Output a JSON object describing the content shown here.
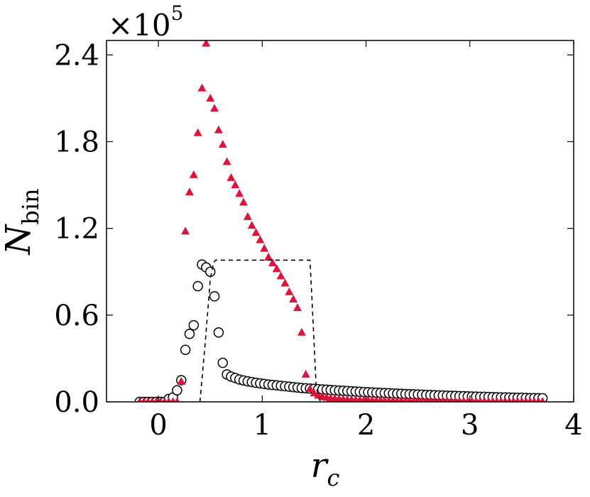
{
  "chart_data": {
    "type": "scatter",
    "title": "",
    "scale_prefix": "×10",
    "scale_exponent": "5",
    "xlabel_main": "r",
    "xlabel_sub": "c",
    "ylabel_main": "N",
    "ylabel_sub": "bin",
    "xlim": [
      -0.5,
      4.0
    ],
    "ylim": [
      0.0,
      2.5
    ],
    "xticks": [
      0,
      1,
      2,
      3,
      4
    ],
    "xtick_labels": [
      "0",
      "1",
      "2",
      "3",
      "4"
    ],
    "yticks": [
      0.0,
      0.6,
      1.2,
      1.8,
      2.4
    ],
    "ytick_labels": [
      "0.0",
      "0.6",
      "1.2",
      "1.8",
      "2.4"
    ],
    "grid": false,
    "legend": "none",
    "colors": {
      "triangles": "#dc143c",
      "circles_edge": "#000000",
      "dashed": "#000000"
    },
    "series": [
      {
        "marker": "open-circle",
        "x": [
          -0.18,
          -0.14,
          -0.1,
          -0.06,
          -0.02,
          0.02,
          0.06,
          0.1,
          0.14,
          0.18,
          0.22,
          0.26,
          0.3,
          0.34,
          0.38,
          0.42,
          0.46,
          0.5,
          0.54,
          0.58,
          0.62,
          0.66,
          0.7,
          0.74,
          0.78,
          0.82,
          0.86,
          0.9,
          0.94,
          0.98,
          1.02,
          1.06,
          1.1,
          1.14,
          1.18,
          1.22,
          1.26,
          1.3,
          1.34,
          1.38,
          1.42,
          1.46,
          1.5,
          1.54,
          1.58,
          1.62,
          1.66,
          1.7,
          1.74,
          1.78,
          1.82,
          1.86,
          1.9,
          1.94,
          1.98,
          2.02,
          2.06,
          2.1,
          2.14,
          2.18,
          2.22,
          2.26,
          2.3,
          2.34,
          2.38,
          2.42,
          2.46,
          2.5,
          2.54,
          2.58,
          2.62,
          2.66,
          2.7,
          2.74,
          2.78,
          2.82,
          2.86,
          2.9,
          2.94,
          2.98,
          3.02,
          3.06,
          3.1,
          3.14,
          3.18,
          3.22,
          3.26,
          3.3,
          3.34,
          3.38,
          3.42,
          3.46,
          3.5,
          3.54,
          3.58,
          3.62,
          3.66,
          3.7
        ],
        "y": [
          0.0,
          0.0,
          0.0,
          0.0,
          0.0,
          0.0,
          0.0,
          0.02,
          0.03,
          0.08,
          0.15,
          0.36,
          0.47,
          0.53,
          0.8,
          0.95,
          0.93,
          0.9,
          0.73,
          0.48,
          0.27,
          0.19,
          0.175,
          0.165,
          0.155,
          0.148,
          0.142,
          0.137,
          0.132,
          0.128,
          0.124,
          0.12,
          0.117,
          0.114,
          0.111,
          0.108,
          0.105,
          0.102,
          0.099,
          0.096,
          0.094,
          0.092,
          0.09,
          0.088,
          0.086,
          0.084,
          0.082,
          0.08,
          0.078,
          0.077,
          0.075,
          0.073,
          0.072,
          0.07,
          0.068,
          0.067,
          0.065,
          0.064,
          0.062,
          0.061,
          0.06,
          0.058,
          0.057,
          0.056,
          0.054,
          0.053,
          0.052,
          0.051,
          0.05,
          0.048,
          0.047,
          0.046,
          0.045,
          0.044,
          0.043,
          0.042,
          0.041,
          0.04,
          0.039,
          0.038,
          0.037,
          0.036,
          0.035,
          0.035,
          0.034,
          0.033,
          0.032,
          0.031,
          0.031,
          0.03,
          0.029,
          0.028,
          0.028,
          0.027,
          0.026,
          0.026,
          0.025,
          0.025
        ]
      },
      {
        "marker": "filled-triangle",
        "x": [
          -0.18,
          -0.14,
          -0.1,
          -0.06,
          -0.02,
          0.02,
          0.06,
          0.1,
          0.14,
          0.18,
          0.22,
          0.26,
          0.3,
          0.34,
          0.38,
          0.42,
          0.46,
          0.5,
          0.54,
          0.58,
          0.62,
          0.66,
          0.7,
          0.74,
          0.78,
          0.82,
          0.86,
          0.9,
          0.94,
          0.98,
          1.02,
          1.06,
          1.1,
          1.14,
          1.18,
          1.22,
          1.26,
          1.3,
          1.34,
          1.38,
          1.42,
          1.46,
          1.5,
          1.54,
          1.58,
          1.62,
          1.66,
          1.7,
          1.74,
          1.78,
          1.82,
          1.86,
          1.9,
          1.94,
          1.98,
          2.02,
          2.06,
          2.1,
          2.14,
          2.18,
          2.22,
          2.26,
          2.3,
          2.34,
          2.38,
          2.42,
          2.46,
          2.5,
          2.54,
          2.58,
          2.62,
          2.66,
          2.7,
          2.74,
          2.78,
          2.82,
          2.86,
          2.9,
          2.94,
          2.98,
          3.02,
          3.06,
          3.1,
          3.14,
          3.18,
          3.22,
          3.26,
          3.3,
          3.34,
          3.38,
          3.42,
          3.46,
          3.5,
          3.54,
          3.58,
          3.62,
          3.66,
          3.7
        ],
        "y": [
          0.0,
          0.0,
          0.0,
          0.0,
          0.0,
          0.0,
          0.0,
          0.0,
          0.0,
          0.0,
          0.14,
          1.18,
          1.45,
          1.57,
          1.86,
          2.17,
          2.48,
          2.1,
          2.03,
          1.88,
          1.78,
          1.66,
          1.55,
          1.5,
          1.44,
          1.38,
          1.28,
          1.22,
          1.17,
          1.12,
          1.06,
          1.0,
          0.96,
          0.92,
          0.87,
          0.82,
          0.76,
          0.71,
          0.65,
          0.48,
          0.19,
          0.09,
          0.06,
          0.045,
          0.035,
          0.03,
          0.025,
          0.022,
          0.02,
          0.018,
          0.016,
          0.015,
          0.014,
          0.013,
          0.012,
          0.011,
          0.01,
          0.01,
          0.009,
          0.009,
          0.008,
          0.008,
          0.007,
          0.007,
          0.007,
          0.006,
          0.006,
          0.006,
          0.005,
          0.005,
          0.005,
          0.005,
          0.004,
          0.004,
          0.004,
          0.004,
          0.004,
          0.003,
          0.003,
          0.003,
          0.003,
          0.003,
          0.003,
          0.003,
          0.002,
          0.002,
          0.002,
          0.002,
          0.002,
          0.002,
          0.002,
          0.002,
          0.002,
          0.002,
          0.002,
          0.002,
          0.002,
          0.002
        ]
      },
      {
        "marker": "dashed-line",
        "x": [
          0.4,
          0.45,
          0.5,
          0.53,
          0.55,
          1.46,
          1.48,
          1.52,
          1.56
        ],
        "y": [
          0.0,
          0.4,
          0.85,
          0.96,
          0.98,
          0.98,
          0.7,
          0.1,
          0.0
        ]
      }
    ]
  }
}
